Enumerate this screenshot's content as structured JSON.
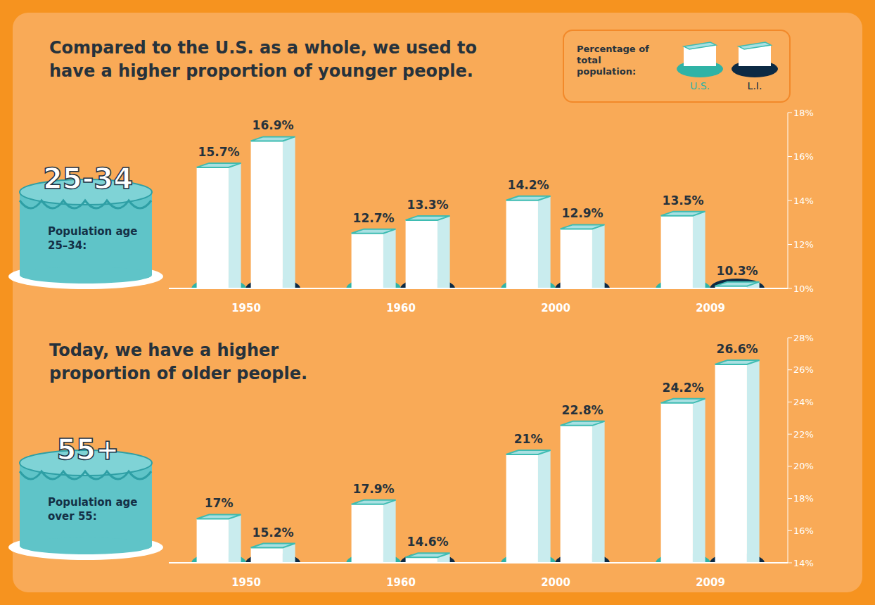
{
  "chart_data": [
    {
      "type": "bar",
      "title": "Compared to the U.S. as a whole, we used to have a higher proportion of younger people.",
      "annotations": [
        "25-34",
        "Population age 25–34:"
      ],
      "legend": "upper right",
      "legend_title": "Percentage of total population:",
      "categories": [
        "1950",
        "1960",
        "2000",
        "2009"
      ],
      "series": [
        {
          "name": "U.S.",
          "color": "#2fb3a6",
          "values": [
            15.7,
            12.7,
            14.2,
            13.5
          ],
          "value_labels": [
            "15.7%",
            "12.7%",
            "14.2%",
            "13.5%"
          ]
        },
        {
          "name": "L.I.",
          "color": "#0c2a44",
          "values": [
            16.9,
            13.3,
            12.9,
            10.3
          ],
          "value_labels": [
            "16.9%",
            "13.3%",
            "12.9%",
            "10.3%"
          ]
        }
      ],
      "ylim": [
        10,
        18
      ],
      "yticks": [
        {
          "value": 10,
          "label": "10%"
        },
        {
          "value": 12,
          "label": "12%"
        },
        {
          "value": 14,
          "label": "14%"
        },
        {
          "value": 16,
          "label": "16%"
        },
        {
          "value": 18,
          "label": "18%"
        }
      ],
      "data_labels": true
    },
    {
      "type": "bar",
      "title": "Today, we have a higher proportion of older people.",
      "annotations": [
        "55+",
        "Population age over 55:"
      ],
      "categories": [
        "1950",
        "1960",
        "2000",
        "2009"
      ],
      "series": [
        {
          "name": "U.S.",
          "color": "#2fb3a6",
          "values": [
            17,
            17.9,
            21,
            24.2
          ],
          "value_labels": [
            "17%",
            "17.9%",
            "21%",
            "24.2%"
          ]
        },
        {
          "name": "L.I.",
          "color": "#0c2a44",
          "values": [
            15.2,
            14.6,
            22.8,
            26.6
          ],
          "value_labels": [
            "15.2%",
            "14.6%",
            "22.8%",
            "26.6%"
          ]
        }
      ],
      "ylim": [
        14,
        28
      ],
      "yticks": [
        {
          "value": 14,
          "label": "14%"
        },
        {
          "value": 16,
          "label": "16%"
        },
        {
          "value": 18,
          "label": "18%"
        },
        {
          "value": 20,
          "label": "20%"
        },
        {
          "value": 22,
          "label": "22%"
        },
        {
          "value": 24,
          "label": "24%"
        },
        {
          "value": 26,
          "label": "26%"
        },
        {
          "value": 28,
          "label": "28%"
        }
      ],
      "data_labels": true
    }
  ]
}
